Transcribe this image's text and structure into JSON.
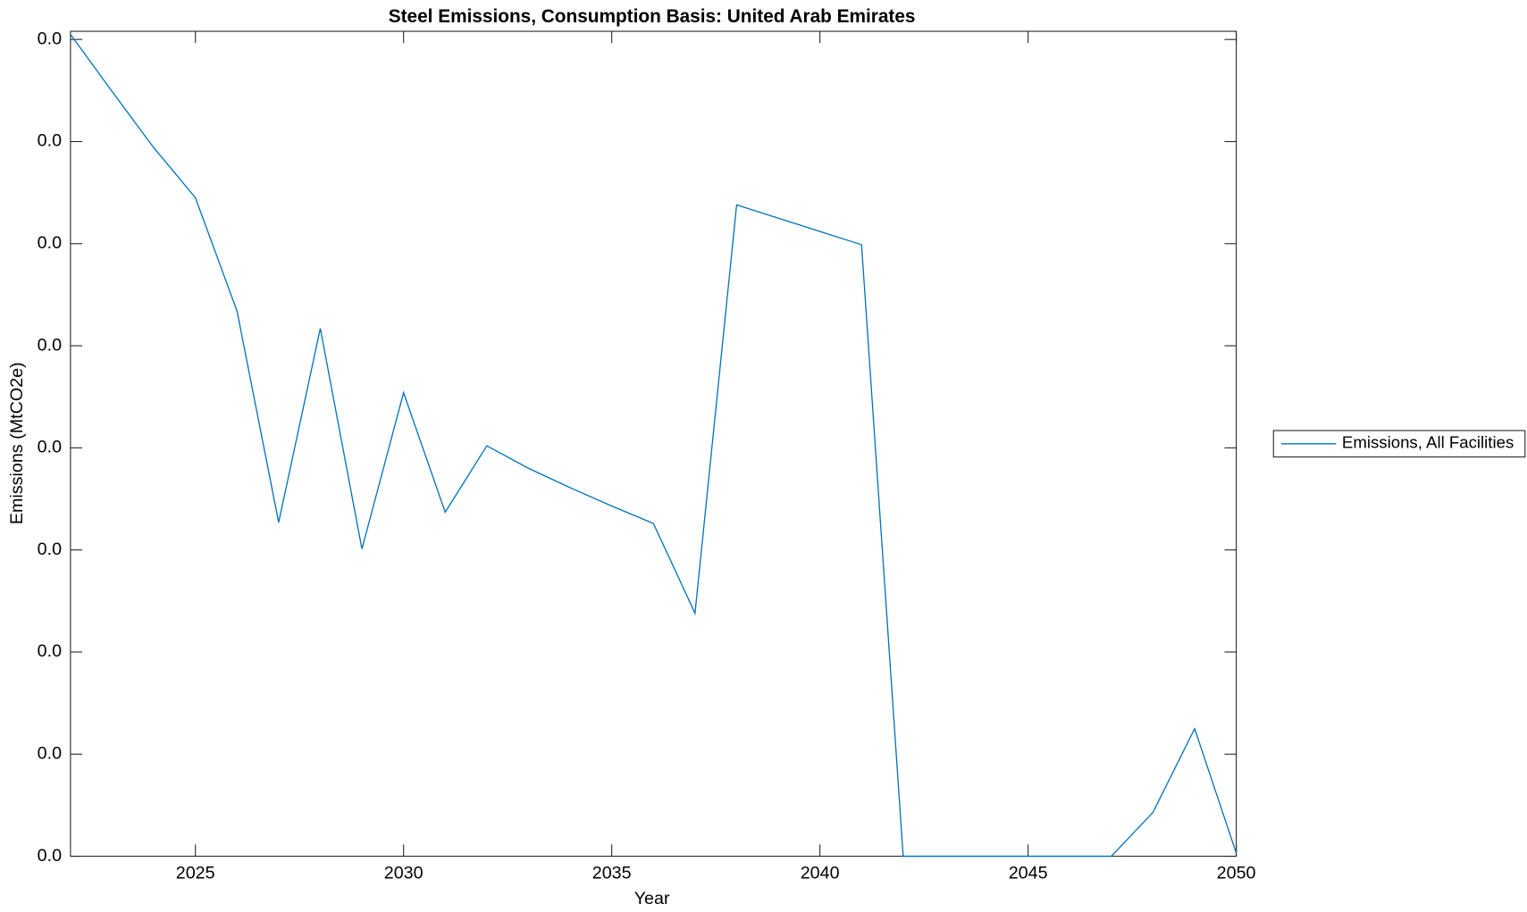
{
  "chart_data": {
    "type": "line",
    "title": "Steel Emissions, Consumption Basis: United Arab Emirates",
    "x_label": "Year",
    "y_label": "Emissions (MtCO2e)",
    "x": [
      2022,
      2023,
      2024,
      2025,
      2026,
      2027,
      2028,
      2029,
      2030,
      2031,
      2032,
      2033,
      2034,
      2035,
      2036,
      2037,
      2038,
      2039,
      2040,
      2041,
      2042,
      2043,
      2044,
      2045,
      2046,
      2047,
      2048,
      2049,
      2050
    ],
    "series": [
      {
        "name": "Emissions, All Facilities",
        "color": "#0072bd",
        "values": [
          0.00805,
          0.00749,
          0.00694,
          0.00645,
          0.00534,
          0.00327,
          0.00517,
          0.00301,
          0.00454,
          0.00337,
          0.00402,
          0.0038,
          0.00361,
          0.00343,
          0.00326,
          0.00238,
          0.00638,
          0.00625,
          0.00612,
          0.00599,
          0,
          0,
          0,
          0,
          0,
          0,
          0.00043,
          0.00125,
          3e-05
        ]
      }
    ],
    "xlim": [
      2022,
      2050
    ],
    "xticks": [
      2025,
      2030,
      2035,
      2040,
      2045,
      2050
    ],
    "ylim": [
      0,
      0.00808
    ],
    "yticks": [
      {
        "value": 0,
        "label": "0.0"
      },
      {
        "value": 0.001,
        "label": "0.0"
      },
      {
        "value": 0.002,
        "label": "0.0"
      },
      {
        "value": 0.003,
        "label": "0.0"
      },
      {
        "value": 0.004,
        "label": "0.0"
      },
      {
        "value": 0.005,
        "label": "0.0"
      },
      {
        "value": 0.006,
        "label": "0.0"
      },
      {
        "value": 0.007,
        "label": "0.0"
      },
      {
        "value": 0.008,
        "label": "0.0"
      }
    ],
    "grid": false,
    "legend": "outside-right"
  }
}
